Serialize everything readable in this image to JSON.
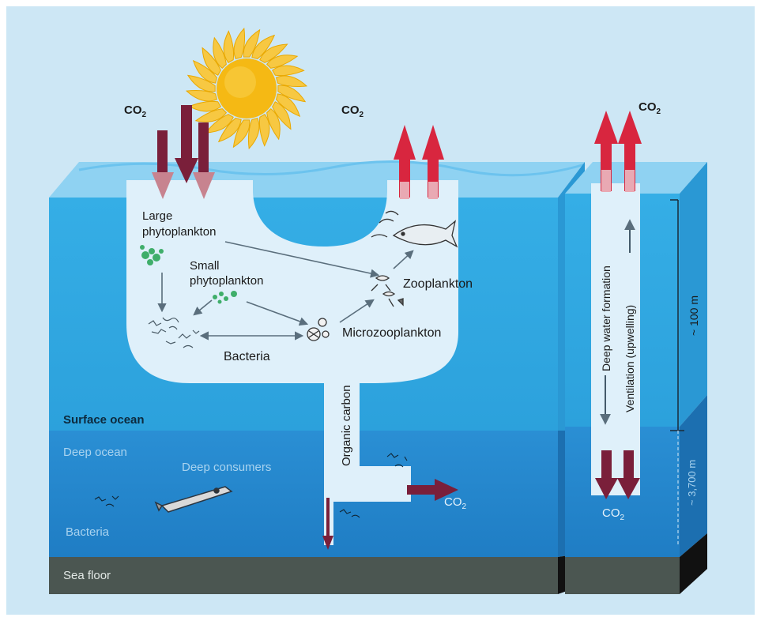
{
  "labels": {
    "co2": "CO",
    "co2_sub": "2",
    "large_phyto_line1": "Large",
    "large_phyto_line2": "phytoplankton",
    "small_phyto_line1": "Small",
    "small_phyto_line2": "phytoplankton",
    "zooplankton": "Zooplankton",
    "microzooplankton": "Microzooplankton",
    "bacteria_surface": "Bacteria",
    "organic_carbon": "Organic carbon",
    "surface_ocean": "Surface ocean",
    "deep_ocean": "Deep ocean",
    "deep_consumers": "Deep consumers",
    "bacteria_deep": "Bacteria",
    "sea_floor": "Sea floor",
    "deep_water_formation": "Deep water formation",
    "ventilation": "Ventilation (upwelling)",
    "depth_100": "~ 100 m",
    "depth_3700": "~ 3,700 m"
  },
  "icons": {
    "sun": "sun-icon",
    "fish": "fish-icon",
    "whale": "whale-icon"
  },
  "colors": {
    "background": "#cfe8f6",
    "surface_water": "#3fb0e6",
    "deep_water": "#2488cf",
    "sea_floor": "#4b5651",
    "pathway": "#dff0fa",
    "co2_down_arrow": "#7a1f3a",
    "co2_up_arrow": "#d8263f",
    "sun": "#f5b914"
  }
}
